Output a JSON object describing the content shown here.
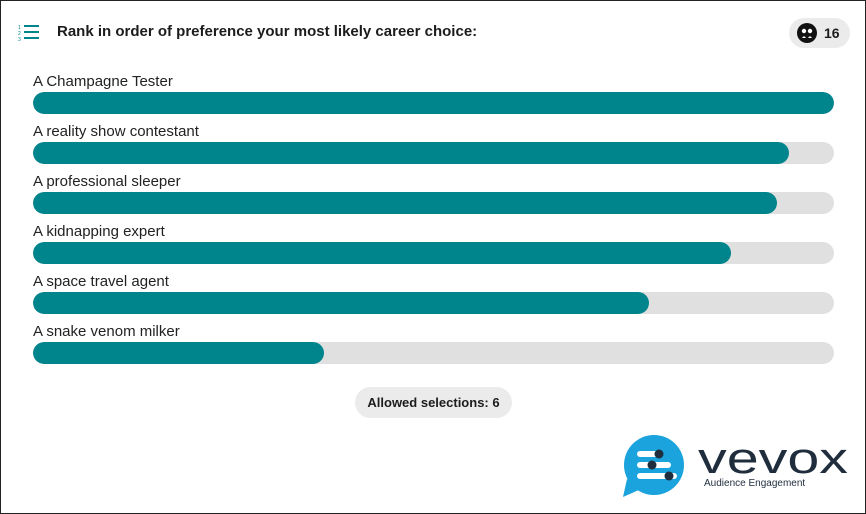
{
  "question": {
    "text": "Rank in order of preference your most likely career choice:",
    "icon": "ranked-list-icon"
  },
  "participants": {
    "count": "16",
    "icon": "participants-icon"
  },
  "options": [
    {
      "label": "A Champagne Tester",
      "fill_fraction": 1.0
    },
    {
      "label": "A reality show contestant",
      "fill_fraction": 0.944
    },
    {
      "label": "A professional sleeper",
      "fill_fraction": 0.929
    },
    {
      "label": "A kidnapping expert",
      "fill_fraction": 0.871
    },
    {
      "label": "A space travel agent",
      "fill_fraction": 0.769
    },
    {
      "label": "A snake venom milker",
      "fill_fraction": 0.363
    }
  ],
  "allowed_selections": "Allowed selections: 6",
  "brand": {
    "wordmark": "vevox",
    "tagline": "Audience Engagement",
    "accent_color": "#00858c",
    "track_color": "#e0e0e0",
    "logo_blue": "#1aa3dc"
  }
}
